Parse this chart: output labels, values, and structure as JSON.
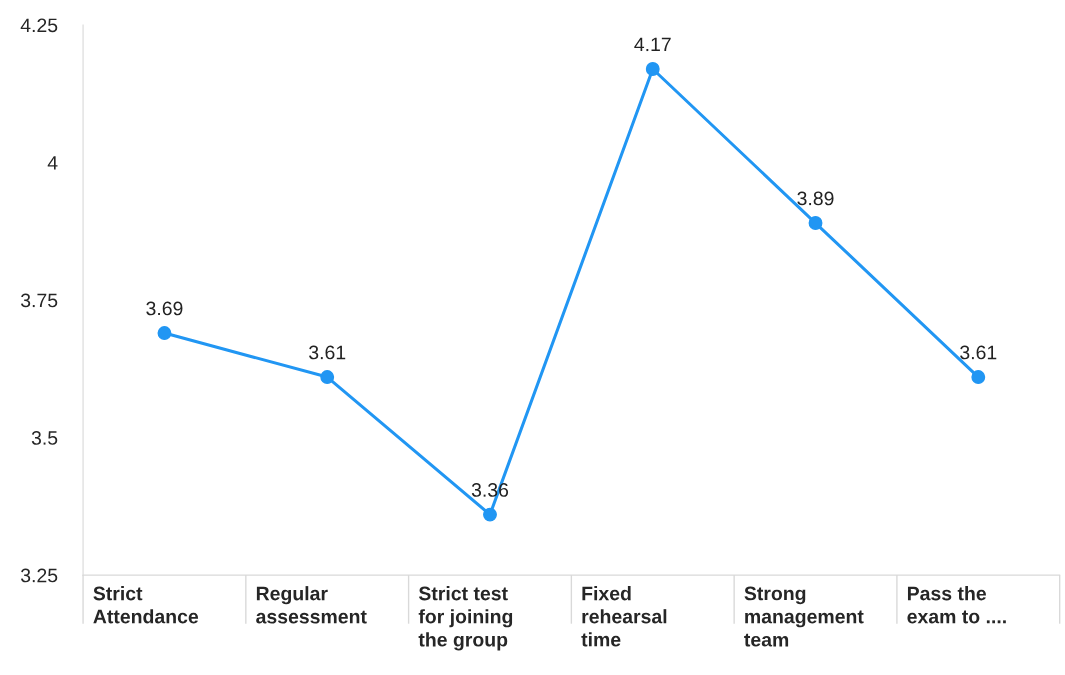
{
  "chart_data": {
    "type": "line",
    "categories": [
      "Strict\nAttendance",
      "Regular\nassessment",
      "Strict test\nfor joining\nthe group",
      "Fixed\nrehearsal\ntime",
      "Strong\nmanagement\nteam",
      "Pass the\nexam to ...."
    ],
    "series": [
      {
        "color": "#2196f3",
        "values": [
          3.69,
          3.61,
          3.36,
          4.17,
          3.89,
          3.61
        ]
      }
    ],
    "ylim": [
      3.25,
      4.25
    ],
    "yticks": [
      3.25,
      3.5,
      3.75,
      4,
      4.25
    ],
    "data_labels": true,
    "marker": "circle",
    "line_style": "solid"
  }
}
